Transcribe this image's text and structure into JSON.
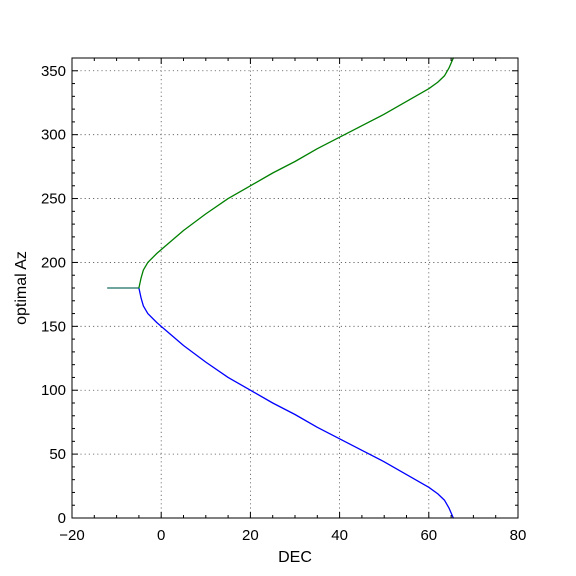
{
  "chart_data": {
    "type": "line",
    "title": "",
    "xlabel": "DEC",
    "ylabel": "optimal Az",
    "xlim": [
      -20,
      80
    ],
    "ylim": [
      0,
      360
    ],
    "xticks": [
      -20,
      0,
      20,
      40,
      60,
      80
    ],
    "yticks": [
      0,
      50,
      100,
      150,
      200,
      250,
      300,
      350
    ],
    "x_minor_step": 5,
    "y_minor_step": 10,
    "grid": true,
    "legend": "none",
    "series": [
      {
        "color": "#1a6e66",
        "points": [
          [
            -12,
            180
          ],
          [
            -5,
            180
          ]
        ]
      },
      {
        "color": "#0000ff",
        "points": [
          [
            -5,
            180
          ],
          [
            -4.5,
            172
          ],
          [
            -4,
            166
          ],
          [
            -3,
            160
          ],
          [
            -1,
            153
          ],
          [
            0,
            150
          ],
          [
            5,
            135
          ],
          [
            10,
            122
          ],
          [
            15,
            110
          ],
          [
            20,
            100
          ],
          [
            25,
            90
          ],
          [
            30,
            81
          ],
          [
            35,
            71
          ],
          [
            40,
            62
          ],
          [
            45,
            53
          ],
          [
            50,
            44
          ],
          [
            55,
            34
          ],
          [
            60,
            24
          ],
          [
            62,
            19
          ],
          [
            63.5,
            14
          ],
          [
            64.5,
            8
          ],
          [
            65,
            4
          ],
          [
            65.5,
            0
          ]
        ]
      },
      {
        "color": "#008000",
        "points": [
          [
            -5,
            180
          ],
          [
            -4.5,
            188
          ],
          [
            -4,
            194
          ],
          [
            -3,
            200
          ],
          [
            -1,
            207
          ],
          [
            0,
            210
          ],
          [
            5,
            225
          ],
          [
            10,
            238
          ],
          [
            15,
            250
          ],
          [
            20,
            260
          ],
          [
            25,
            270
          ],
          [
            30,
            279
          ],
          [
            35,
            289
          ],
          [
            40,
            298
          ],
          [
            45,
            307
          ],
          [
            50,
            316
          ],
          [
            55,
            326
          ],
          [
            60,
            336
          ],
          [
            62,
            341
          ],
          [
            63.5,
            346
          ],
          [
            64.5,
            352
          ],
          [
            65,
            356
          ],
          [
            65.5,
            360
          ]
        ]
      }
    ]
  }
}
